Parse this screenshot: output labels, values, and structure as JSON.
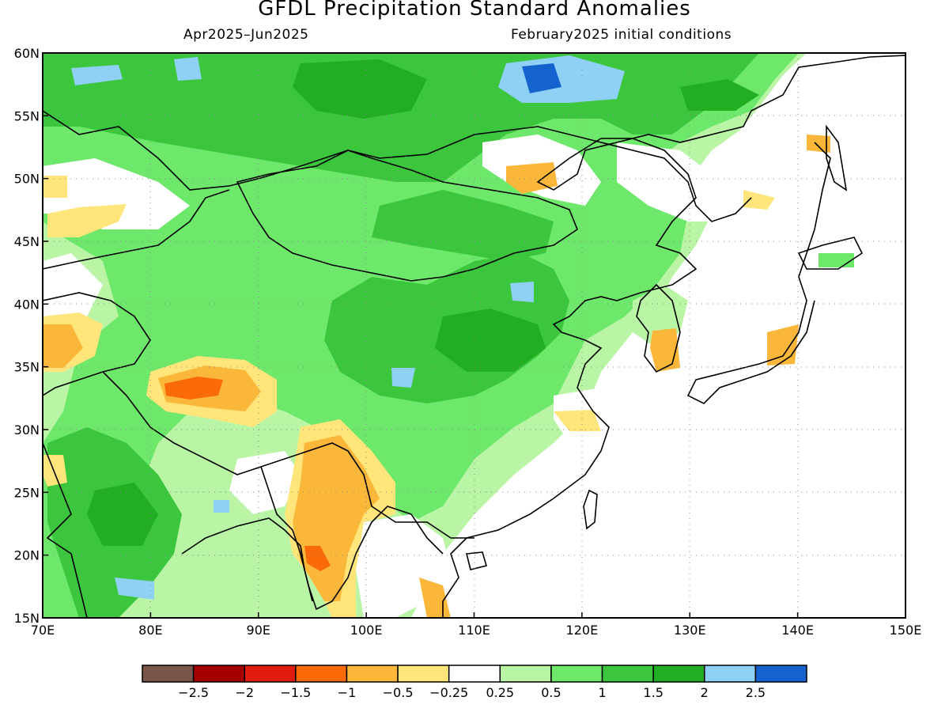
{
  "title": "GFDL Precipitation Standard Anomalies",
  "subtitle_left": "Apr2025–Jun2025",
  "subtitle_right": "February2025 initial conditions",
  "map": {
    "lon_range": [
      70,
      150
    ],
    "lat_range": [
      15,
      60
    ],
    "lon_ticks": [
      "70E",
      "80E",
      "90E",
      "100E",
      "110E",
      "120E",
      "130E",
      "140E",
      "150E"
    ],
    "lat_ticks": [
      "60N",
      "55N",
      "50N",
      "45N",
      "40N",
      "35N",
      "30N",
      "25N",
      "20N",
      "15N"
    ],
    "grid": "dotted"
  },
  "colorbar": {
    "colors": [
      "#7a5549",
      "#a50000",
      "#e01c0e",
      "#fa6a08",
      "#fbb73a",
      "#ffe57a",
      "#ffffff",
      "#b9f5a4",
      "#6ee86b",
      "#3bc63d",
      "#21ae23",
      "#8fd0f5",
      "#1462cd"
    ],
    "labels": [
      "−2.5",
      "−2",
      "−1.5",
      "−1",
      "−0.5",
      "−0.25",
      "0.25",
      "0.5",
      "1",
      "1.5",
      "2",
      "2.5"
    ]
  },
  "palette": {
    "light_green": "#b9f5a4",
    "mid_green": "#6ee86b",
    "green": "#3bc63d",
    "dark_green": "#21ae23",
    "light_blue": "#8fd0f5",
    "blue": "#1462cd",
    "yellow": "#ffe57a",
    "light_orange": "#fbb73a",
    "orange": "#fa6a08",
    "red": "#e01c0e"
  }
}
